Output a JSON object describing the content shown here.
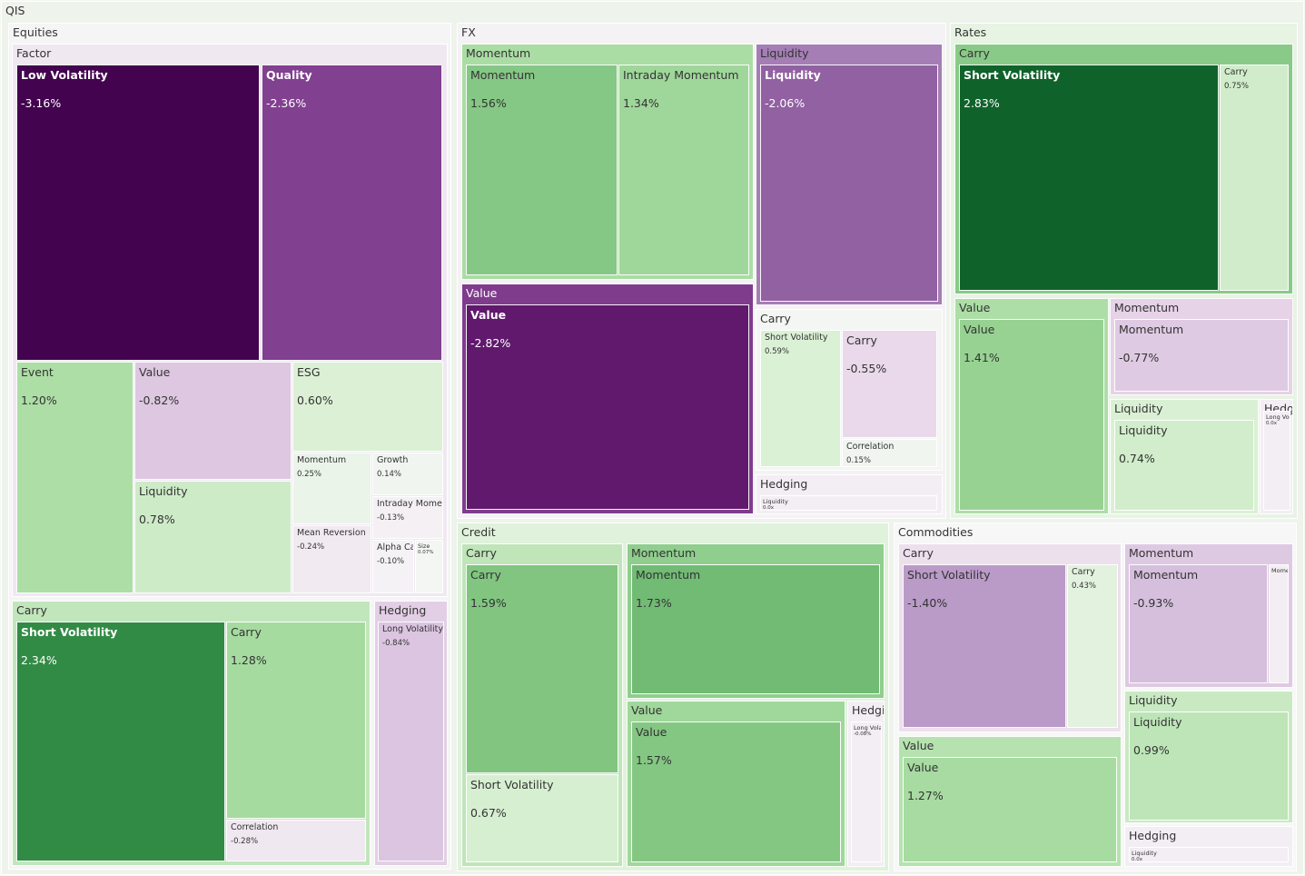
{
  "chart_data": {
    "type": "treemap",
    "title": "",
    "value_unit": "%",
    "color_scale": {
      "negative": "#40004b",
      "neutral": "#f7f7f7",
      "positive": "#00441b"
    },
    "root": {
      "name": "QIS",
      "children": [
        {
          "name": "Equities",
          "children": [
            {
              "name": "Factor",
              "children": [
                {
                  "name": "Low Volatility",
                  "value": -3.16
                },
                {
                  "name": "Quality",
                  "value": -2.36
                },
                {
                  "name": "Event",
                  "value": 1.2
                },
                {
                  "name": "Value",
                  "value": -0.82
                },
                {
                  "name": "ESG",
                  "value": 0.6
                },
                {
                  "name": "Liquidity",
                  "value": 0.78
                },
                {
                  "name": "Momentum",
                  "value": 0.25
                },
                {
                  "name": "Growth",
                  "value": 0.14
                },
                {
                  "name": "Intraday Momentum",
                  "value": -0.13
                },
                {
                  "name": "Mean Reversion",
                  "value": -0.24
                },
                {
                  "name": "Alpha Capture",
                  "value": -0.1
                },
                {
                  "name": "Size",
                  "value": 0.07
                }
              ]
            },
            {
              "name": "Carry",
              "children": [
                {
                  "name": "Short Volatility",
                  "value": 2.34
                },
                {
                  "name": "Carry",
                  "value": 1.28
                },
                {
                  "name": "Correlation",
                  "value": -0.28
                }
              ]
            },
            {
              "name": "Hedging",
              "children": [
                {
                  "name": "Long Volatility",
                  "value": -0.84
                }
              ]
            }
          ]
        },
        {
          "name": "FX",
          "children": [
            {
              "name": "Momentum",
              "children": [
                {
                  "name": "Momentum",
                  "value": 1.56
                },
                {
                  "name": "Intraday Momentum",
                  "value": 1.34
                }
              ]
            },
            {
              "name": "Liquidity",
              "children": [
                {
                  "name": "Liquidity",
                  "value": -2.06
                }
              ]
            },
            {
              "name": "Value",
              "children": [
                {
                  "name": "Value",
                  "value": -2.82
                }
              ]
            },
            {
              "name": "Carry",
              "children": [
                {
                  "name": "Short Volatility",
                  "value": 0.59
                },
                {
                  "name": "Carry",
                  "value": -0.55
                },
                {
                  "name": "Correlation",
                  "value": 0.15
                }
              ]
            },
            {
              "name": "Hedging",
              "children": [
                {
                  "name": "Liquidity",
                  "value": null,
                  "value_label": "0.0x"
                }
              ]
            }
          ]
        },
        {
          "name": "Rates",
          "children": [
            {
              "name": "Carry",
              "children": [
                {
                  "name": "Short Volatility",
                  "value": 2.83
                },
                {
                  "name": "Carry",
                  "value": 0.75
                }
              ]
            },
            {
              "name": "Value",
              "children": [
                {
                  "name": "Value",
                  "value": 1.41
                }
              ]
            },
            {
              "name": "Momentum",
              "children": [
                {
                  "name": "Momentum",
                  "value": -0.77
                }
              ]
            },
            {
              "name": "Liquidity",
              "children": [
                {
                  "name": "Liquidity",
                  "value": 0.74
                }
              ]
            },
            {
              "name": "Hedging",
              "children": [
                {
                  "name": "Long Volatility",
                  "value": null,
                  "value_label": "0.0x"
                }
              ]
            }
          ]
        },
        {
          "name": "Credit",
          "children": [
            {
              "name": "Carry",
              "children": [
                {
                  "name": "Carry",
                  "value": 1.59
                },
                {
                  "name": "Short Volatility",
                  "value": 0.67
                }
              ]
            },
            {
              "name": "Momentum",
              "children": [
                {
                  "name": "Momentum",
                  "value": 1.73
                }
              ]
            },
            {
              "name": "Value",
              "children": [
                {
                  "name": "Value",
                  "value": 1.57
                }
              ]
            },
            {
              "name": "Hedging",
              "children": [
                {
                  "name": "Long Volatility",
                  "value": null,
                  "value_label": "-0.08%"
                }
              ]
            }
          ]
        },
        {
          "name": "Commodities",
          "children": [
            {
              "name": "Carry",
              "children": [
                {
                  "name": "Short Volatility",
                  "value": -1.4
                },
                {
                  "name": "Carry",
                  "value": 0.43
                }
              ]
            },
            {
              "name": "Momentum",
              "children": [
                {
                  "name": "Momentum",
                  "value": -0.93
                },
                {
                  "name": "Momentum",
                  "value": null,
                  "value_label": ""
                }
              ]
            },
            {
              "name": "Value",
              "children": [
                {
                  "name": "Value",
                  "value": 1.27
                }
              ]
            },
            {
              "name": "Liquidity",
              "children": [
                {
                  "name": "Liquidity",
                  "value": 0.99
                }
              ]
            },
            {
              "name": "Hedging",
              "children": [
                {
                  "name": "Liquidity",
                  "value": null,
                  "value_label": "0.0x"
                }
              ]
            }
          ]
        }
      ]
    }
  }
}
